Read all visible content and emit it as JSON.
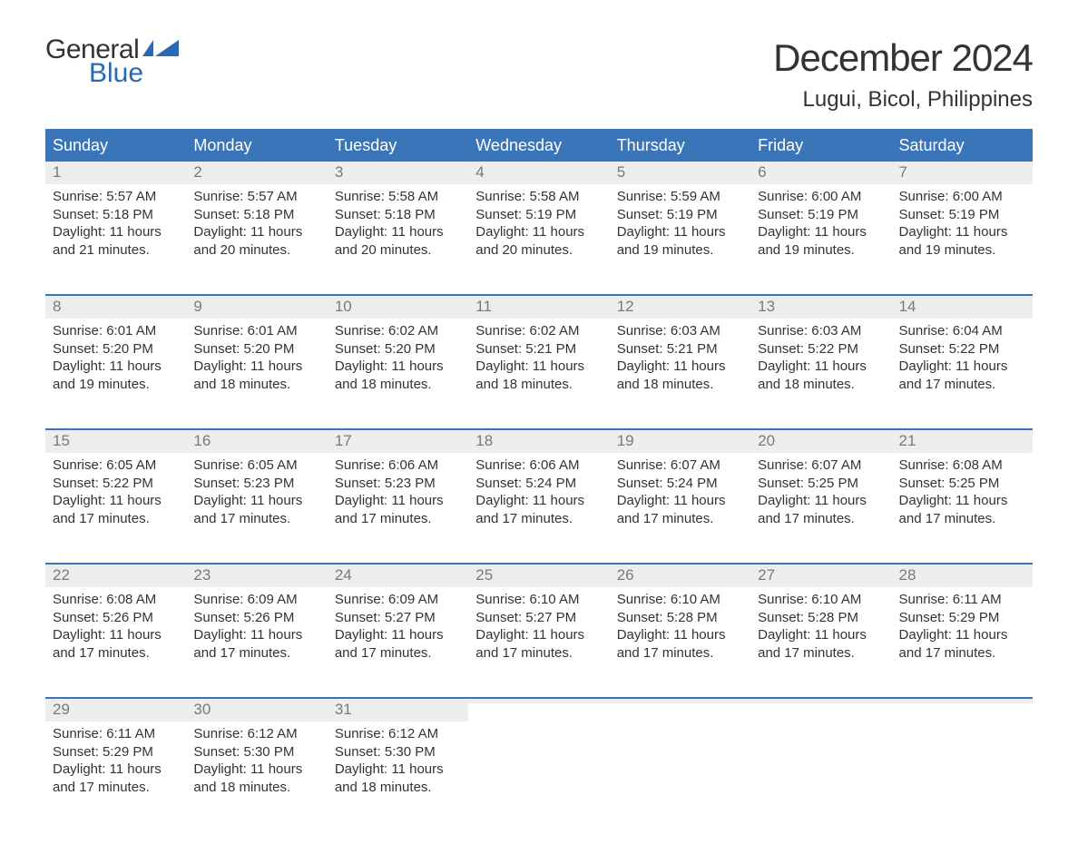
{
  "colors": {
    "header_bar": "#3a75b9",
    "header_text": "#ffffff",
    "day_number_bg": "#ededed",
    "day_number_color": "#7a7a7a",
    "body_text": "#333333",
    "logo_blue": "#2968b2",
    "week_divider": "#3a75b9",
    "background": "#ffffff"
  },
  "typography": {
    "month_title_fontsize": 42,
    "location_fontsize": 24,
    "weekday_fontsize": 18,
    "day_number_fontsize": 17,
    "body_fontsize": 15,
    "logo_fontsize": 30
  },
  "logo": {
    "line1": "General",
    "line2": "Blue"
  },
  "title": "December 2024",
  "location": "Lugui, Bicol, Philippines",
  "weekdays": [
    "Sunday",
    "Monday",
    "Tuesday",
    "Wednesday",
    "Thursday",
    "Friday",
    "Saturday"
  ],
  "weeks": [
    [
      {
        "n": "1",
        "sunrise": "Sunrise: 5:57 AM",
        "sunset": "Sunset: 5:18 PM",
        "day1": "Daylight: 11 hours",
        "day2": "and 21 minutes."
      },
      {
        "n": "2",
        "sunrise": "Sunrise: 5:57 AM",
        "sunset": "Sunset: 5:18 PM",
        "day1": "Daylight: 11 hours",
        "day2": "and 20 minutes."
      },
      {
        "n": "3",
        "sunrise": "Sunrise: 5:58 AM",
        "sunset": "Sunset: 5:18 PM",
        "day1": "Daylight: 11 hours",
        "day2": "and 20 minutes."
      },
      {
        "n": "4",
        "sunrise": "Sunrise: 5:58 AM",
        "sunset": "Sunset: 5:19 PM",
        "day1": "Daylight: 11 hours",
        "day2": "and 20 minutes."
      },
      {
        "n": "5",
        "sunrise": "Sunrise: 5:59 AM",
        "sunset": "Sunset: 5:19 PM",
        "day1": "Daylight: 11 hours",
        "day2": "and 19 minutes."
      },
      {
        "n": "6",
        "sunrise": "Sunrise: 6:00 AM",
        "sunset": "Sunset: 5:19 PM",
        "day1": "Daylight: 11 hours",
        "day2": "and 19 minutes."
      },
      {
        "n": "7",
        "sunrise": "Sunrise: 6:00 AM",
        "sunset": "Sunset: 5:19 PM",
        "day1": "Daylight: 11 hours",
        "day2": "and 19 minutes."
      }
    ],
    [
      {
        "n": "8",
        "sunrise": "Sunrise: 6:01 AM",
        "sunset": "Sunset: 5:20 PM",
        "day1": "Daylight: 11 hours",
        "day2": "and 19 minutes."
      },
      {
        "n": "9",
        "sunrise": "Sunrise: 6:01 AM",
        "sunset": "Sunset: 5:20 PM",
        "day1": "Daylight: 11 hours",
        "day2": "and 18 minutes."
      },
      {
        "n": "10",
        "sunrise": "Sunrise: 6:02 AM",
        "sunset": "Sunset: 5:20 PM",
        "day1": "Daylight: 11 hours",
        "day2": "and 18 minutes."
      },
      {
        "n": "11",
        "sunrise": "Sunrise: 6:02 AM",
        "sunset": "Sunset: 5:21 PM",
        "day1": "Daylight: 11 hours",
        "day2": "and 18 minutes."
      },
      {
        "n": "12",
        "sunrise": "Sunrise: 6:03 AM",
        "sunset": "Sunset: 5:21 PM",
        "day1": "Daylight: 11 hours",
        "day2": "and 18 minutes."
      },
      {
        "n": "13",
        "sunrise": "Sunrise: 6:03 AM",
        "sunset": "Sunset: 5:22 PM",
        "day1": "Daylight: 11 hours",
        "day2": "and 18 minutes."
      },
      {
        "n": "14",
        "sunrise": "Sunrise: 6:04 AM",
        "sunset": "Sunset: 5:22 PM",
        "day1": "Daylight: 11 hours",
        "day2": "and 17 minutes."
      }
    ],
    [
      {
        "n": "15",
        "sunrise": "Sunrise: 6:05 AM",
        "sunset": "Sunset: 5:22 PM",
        "day1": "Daylight: 11 hours",
        "day2": "and 17 minutes."
      },
      {
        "n": "16",
        "sunrise": "Sunrise: 6:05 AM",
        "sunset": "Sunset: 5:23 PM",
        "day1": "Daylight: 11 hours",
        "day2": "and 17 minutes."
      },
      {
        "n": "17",
        "sunrise": "Sunrise: 6:06 AM",
        "sunset": "Sunset: 5:23 PM",
        "day1": "Daylight: 11 hours",
        "day2": "and 17 minutes."
      },
      {
        "n": "18",
        "sunrise": "Sunrise: 6:06 AM",
        "sunset": "Sunset: 5:24 PM",
        "day1": "Daylight: 11 hours",
        "day2": "and 17 minutes."
      },
      {
        "n": "19",
        "sunrise": "Sunrise: 6:07 AM",
        "sunset": "Sunset: 5:24 PM",
        "day1": "Daylight: 11 hours",
        "day2": "and 17 minutes."
      },
      {
        "n": "20",
        "sunrise": "Sunrise: 6:07 AM",
        "sunset": "Sunset: 5:25 PM",
        "day1": "Daylight: 11 hours",
        "day2": "and 17 minutes."
      },
      {
        "n": "21",
        "sunrise": "Sunrise: 6:08 AM",
        "sunset": "Sunset: 5:25 PM",
        "day1": "Daylight: 11 hours",
        "day2": "and 17 minutes."
      }
    ],
    [
      {
        "n": "22",
        "sunrise": "Sunrise: 6:08 AM",
        "sunset": "Sunset: 5:26 PM",
        "day1": "Daylight: 11 hours",
        "day2": "and 17 minutes."
      },
      {
        "n": "23",
        "sunrise": "Sunrise: 6:09 AM",
        "sunset": "Sunset: 5:26 PM",
        "day1": "Daylight: 11 hours",
        "day2": "and 17 minutes."
      },
      {
        "n": "24",
        "sunrise": "Sunrise: 6:09 AM",
        "sunset": "Sunset: 5:27 PM",
        "day1": "Daylight: 11 hours",
        "day2": "and 17 minutes."
      },
      {
        "n": "25",
        "sunrise": "Sunrise: 6:10 AM",
        "sunset": "Sunset: 5:27 PM",
        "day1": "Daylight: 11 hours",
        "day2": "and 17 minutes."
      },
      {
        "n": "26",
        "sunrise": "Sunrise: 6:10 AM",
        "sunset": "Sunset: 5:28 PM",
        "day1": "Daylight: 11 hours",
        "day2": "and 17 minutes."
      },
      {
        "n": "27",
        "sunrise": "Sunrise: 6:10 AM",
        "sunset": "Sunset: 5:28 PM",
        "day1": "Daylight: 11 hours",
        "day2": "and 17 minutes."
      },
      {
        "n": "28",
        "sunrise": "Sunrise: 6:11 AM",
        "sunset": "Sunset: 5:29 PM",
        "day1": "Daylight: 11 hours",
        "day2": "and 17 minutes."
      }
    ],
    [
      {
        "n": "29",
        "sunrise": "Sunrise: 6:11 AM",
        "sunset": "Sunset: 5:29 PM",
        "day1": "Daylight: 11 hours",
        "day2": "and 17 minutes."
      },
      {
        "n": "30",
        "sunrise": "Sunrise: 6:12 AM",
        "sunset": "Sunset: 5:30 PM",
        "day1": "Daylight: 11 hours",
        "day2": "and 18 minutes."
      },
      {
        "n": "31",
        "sunrise": "Sunrise: 6:12 AM",
        "sunset": "Sunset: 5:30 PM",
        "day1": "Daylight: 11 hours",
        "day2": "and 18 minutes."
      },
      {
        "empty": true
      },
      {
        "empty": true
      },
      {
        "empty": true
      },
      {
        "empty": true
      }
    ]
  ]
}
